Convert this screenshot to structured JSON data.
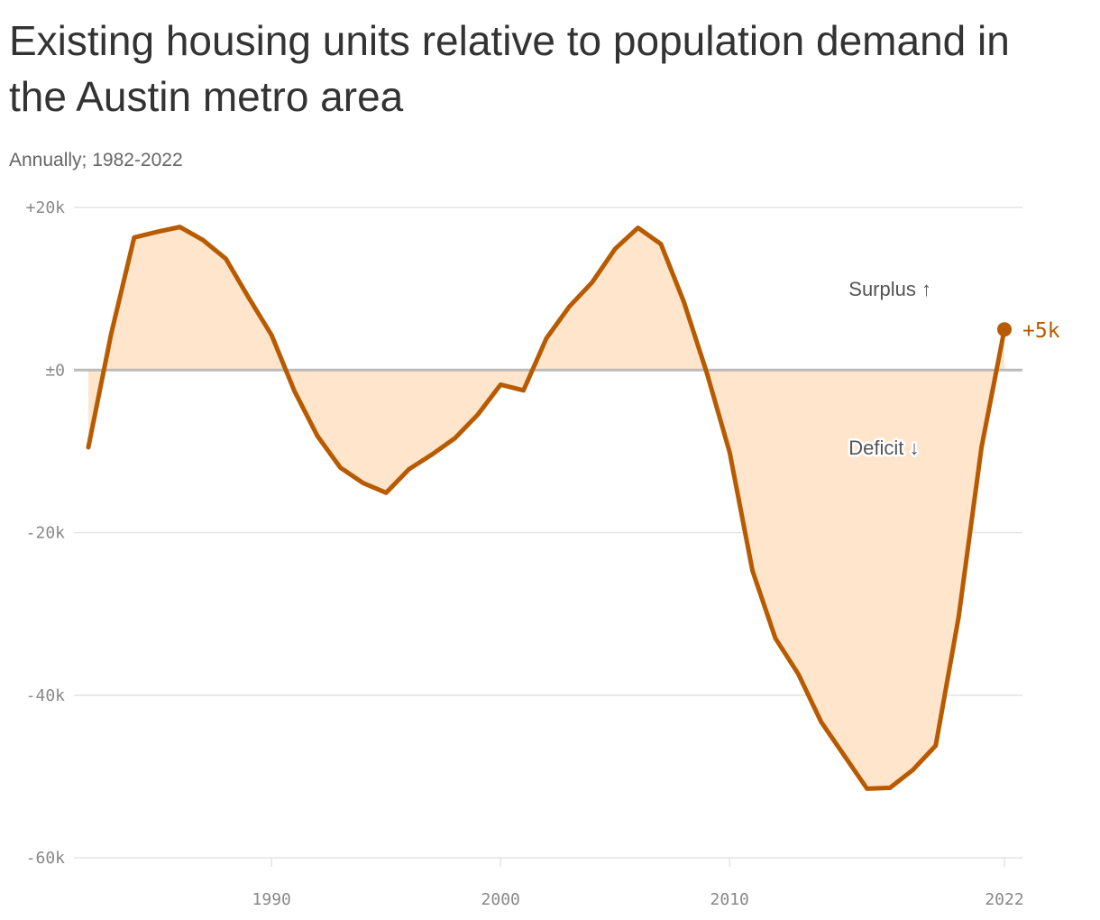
{
  "title": "Existing housing units relative to population demand in the Austin metro area",
  "subtitle": "Annually; 1982-2022",
  "colors": {
    "line": "#b85a00",
    "fill": "#fee5cb",
    "zero": "#bbbbbb",
    "grid": "#e3e3e3"
  },
  "chart_data": {
    "type": "area",
    "title": "Existing housing units relative to population demand in the Austin metro area",
    "xlabel": "",
    "ylabel": "",
    "xlim": [
      1982,
      2022
    ],
    "ylim": [
      -60000,
      20000
    ],
    "grid": true,
    "x": [
      1982,
      1983,
      1984,
      1985,
      1986,
      1987,
      1988,
      1989,
      1990,
      1991,
      1992,
      1993,
      1994,
      1995,
      1996,
      1997,
      1998,
      1999,
      2000,
      2001,
      2002,
      2003,
      2004,
      2005,
      2006,
      2007,
      2008,
      2009,
      2010,
      2011,
      2012,
      2013,
      2014,
      2015,
      2016,
      2017,
      2018,
      2019,
      2020,
      2021,
      2022
    ],
    "series": [
      {
        "values": [
          -9500,
          4500,
          16300,
          17000,
          17600,
          16000,
          13700,
          8900,
          4300,
          -2600,
          -8100,
          -12000,
          -13900,
          -15100,
          -12200,
          -10400,
          -8400,
          -5500,
          -1800,
          -2500,
          3900,
          7800,
          10800,
          14900,
          17500,
          15500,
          8400,
          -300,
          -10100,
          -24700,
          -33000,
          -37400,
          -43300,
          -47400,
          -51500,
          -51400,
          -49200,
          -46200,
          -30400,
          -9500,
          5000
        ]
      }
    ],
    "yticks": [
      {
        "value": 20000,
        "label": "+20k"
      },
      {
        "value": 0,
        "label": "±0"
      },
      {
        "value": -20000,
        "label": "-20k"
      },
      {
        "value": -40000,
        "label": "-40k"
      },
      {
        "value": -60000,
        "label": "-60k"
      }
    ],
    "xticks": [
      {
        "value": 1990,
        "label": "1990"
      },
      {
        "value": 2000,
        "label": "2000"
      },
      {
        "value": 2010,
        "label": "2010"
      },
      {
        "value": 2022,
        "label": "2022"
      }
    ],
    "annotations": [
      {
        "text": "Surplus ↑",
        "x": 2015.2,
        "y": 10000
      },
      {
        "text": "Deficit ↓",
        "x": 2015.2,
        "y": -9500
      }
    ],
    "end_label": "+5k"
  }
}
